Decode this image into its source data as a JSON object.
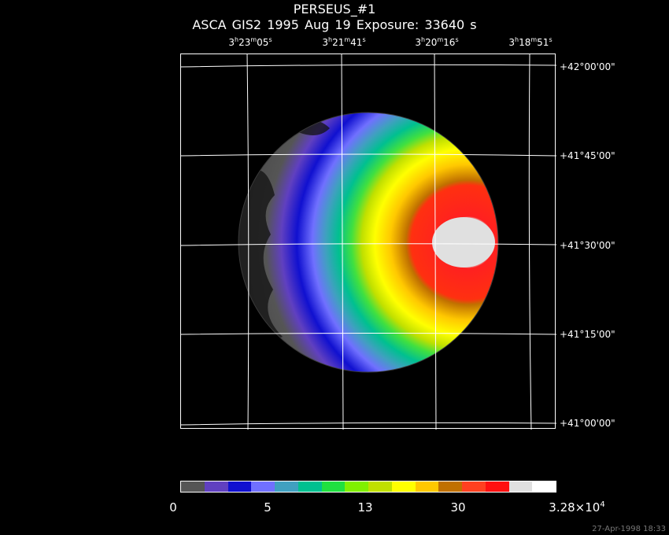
{
  "title": "PERSEUS_#1",
  "subtitle": "ASCA GIS2    1995 Aug 19     Exposure: 33640 s",
  "ra_labels": [
    {
      "h": "3",
      "m": "23",
      "s": "05"
    },
    {
      "h": "3",
      "m": "21",
      "s": "41"
    },
    {
      "h": "3",
      "m": "20",
      "s": "16"
    },
    {
      "h": "3",
      "m": "18",
      "s": "51"
    }
  ],
  "dec_labels": [
    "+42°00'00\"",
    "+41°45'00\"",
    "+41°30'00\"",
    "+41°15'00\"",
    "+41°00'00\""
  ],
  "colorbar": {
    "colors": [
      "#555555",
      "#6040c0",
      "#1010d0",
      "#7070ff",
      "#40a0c0",
      "#00c090",
      "#20e040",
      "#80f000",
      "#c0e000",
      "#ffff00",
      "#ffc800",
      "#c07000",
      "#ff4020",
      "#ff1010",
      "#e0e0e0",
      "#ffffff"
    ],
    "labels": {
      "l0": "0",
      "l1": "5",
      "l2": "13",
      "l3": "30",
      "l4_base": "3.28×10",
      "l4_exp": "4"
    }
  },
  "timestamp": "27-Apr-1998 18:33"
}
